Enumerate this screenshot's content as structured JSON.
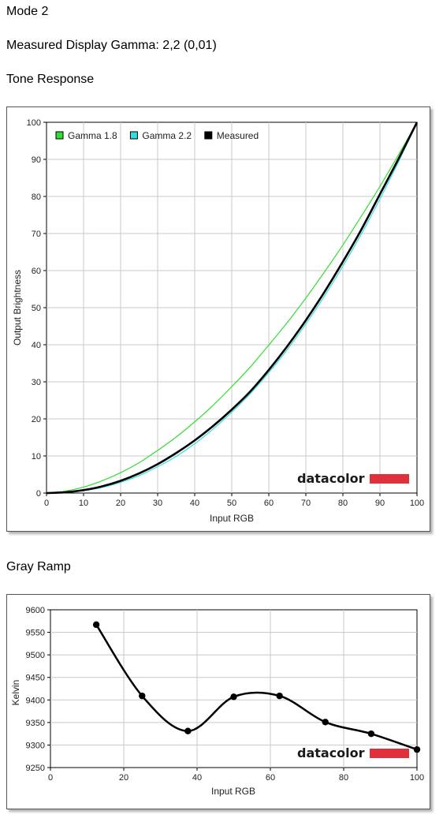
{
  "page": {
    "mode_title": "Mode 2",
    "gamma_label": "Measured Display Gamma: 2,2 (0,01)",
    "tone_title": "Tone Response",
    "gray_title": "Gray Ramp"
  },
  "brand": {
    "logo_text": "datacolor",
    "bar_color": "#e0303c"
  },
  "chart_data": [
    {
      "type": "line",
      "title": "Tone Response",
      "xlabel": "Input RGB",
      "ylabel": "Output Brightness",
      "xlim": [
        0,
        100
      ],
      "ylim": [
        0,
        100
      ],
      "xticks": [
        0,
        10,
        20,
        30,
        40,
        50,
        60,
        70,
        80,
        90,
        100
      ],
      "yticks": [
        0,
        10,
        20,
        30,
        40,
        50,
        60,
        70,
        80,
        90,
        100
      ],
      "grid": true,
      "legend_position": "top-left",
      "series": [
        {
          "name": "Gamma 1.8",
          "color": "#33dd33",
          "x": [
            0,
            5,
            10,
            15,
            20,
            25,
            30,
            35,
            40,
            45,
            50,
            55,
            60,
            65,
            70,
            75,
            80,
            85,
            90,
            95,
            100
          ],
          "y": [
            0,
            0.5,
            1.6,
            3.3,
            5.5,
            8.2,
            11.5,
            15.1,
            19.2,
            23.7,
            28.7,
            34.0,
            39.9,
            46.0,
            52.6,
            59.6,
            66.9,
            74.7,
            82.7,
            91.2,
            100
          ]
        },
        {
          "name": "Gamma 2.2",
          "color": "#33dddd",
          "x": [
            0,
            5,
            10,
            15,
            20,
            25,
            30,
            35,
            40,
            45,
            50,
            55,
            60,
            65,
            70,
            75,
            80,
            85,
            90,
            95,
            100
          ],
          "y": [
            0,
            0.1,
            0.6,
            1.5,
            2.9,
            4.7,
            7.1,
            9.9,
            13.3,
            17.3,
            21.8,
            26.8,
            32.5,
            38.7,
            45.6,
            53.1,
            61.2,
            69.9,
            79.3,
            89.3,
            100
          ]
        },
        {
          "name": "Measured",
          "color": "#000000",
          "x": [
            0,
            5,
            10,
            15,
            20,
            25,
            30,
            35,
            40,
            45,
            50,
            55,
            60,
            65,
            70,
            75,
            80,
            85,
            90,
            95,
            100
          ],
          "y": [
            0,
            0.2,
            0.8,
            1.8,
            3.3,
            5.3,
            7.8,
            10.8,
            14.2,
            18.1,
            22.5,
            27.4,
            33.2,
            39.6,
            46.6,
            54.2,
            62.4,
            71.1,
            80.6,
            90.1,
            100
          ]
        }
      ]
    },
    {
      "type": "line",
      "title": "Gray Ramp",
      "xlabel": "Input RGB",
      "ylabel": "Kelvin",
      "xlim": [
        0,
        100
      ],
      "ylim": [
        9250,
        9600
      ],
      "xticks": [
        0,
        20,
        40,
        60,
        80,
        100
      ],
      "yticks": [
        9250,
        9300,
        9350,
        9400,
        9450,
        9500,
        9550,
        9600
      ],
      "grid": true,
      "series": [
        {
          "color": "#000000",
          "x": [
            12.5,
            25,
            37.5,
            50,
            62.5,
            75,
            87.5,
            100
          ],
          "y": [
            9567,
            9409,
            9331,
            9407,
            9409,
            9351,
            9325,
            9290
          ]
        }
      ]
    }
  ]
}
